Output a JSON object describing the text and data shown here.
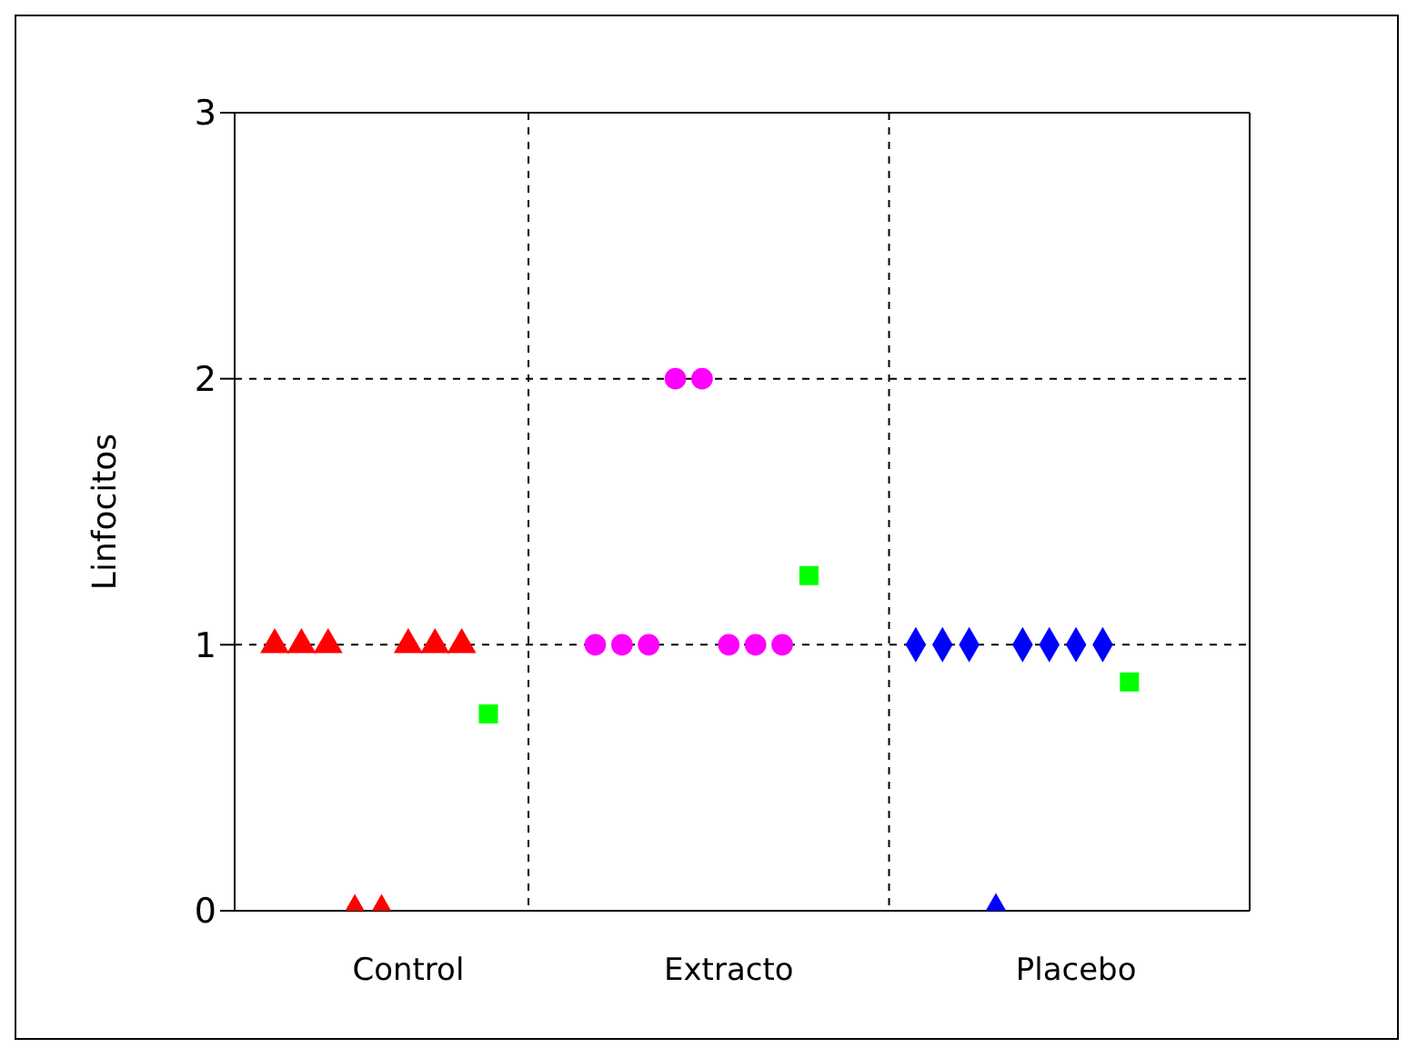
{
  "chart_data": {
    "type": "scatter",
    "ylabel": "Linfocitos",
    "categories": [
      null,
      null,
      null,
      null,
      null,
      null,
      "Control",
      null,
      null,
      null,
      null,
      null,
      null,
      null,
      null,
      null,
      null,
      null,
      "Extracto",
      null,
      null,
      null,
      null,
      null,
      null,
      null,
      null,
      null,
      null,
      null,
      null,
      "Placebo",
      null,
      null,
      null,
      null,
      null,
      null
    ],
    "ylim": [
      0,
      3
    ],
    "yticks": [
      0,
      1,
      2,
      3
    ],
    "grid": true,
    "series": [
      {
        "color": "#ff0000",
        "marker": "triangle",
        "values": [
          null,
          1,
          1,
          1,
          0,
          0,
          1,
          1,
          1,
          null,
          null,
          null,
          null,
          null,
          null,
          null,
          null,
          null,
          null,
          null,
          null,
          null,
          null,
          null,
          null,
          null,
          null,
          null,
          null,
          null,
          null,
          null,
          null,
          null,
          null,
          null,
          null,
          null
        ]
      },
      {
        "color": "#ff00ff",
        "marker": "circle",
        "values": [
          null,
          null,
          null,
          null,
          null,
          null,
          null,
          null,
          null,
          null,
          null,
          null,
          null,
          1,
          1,
          1,
          2,
          2,
          1,
          1,
          1,
          null,
          null,
          null,
          null,
          null,
          null,
          null,
          null,
          null,
          null,
          null,
          null,
          null,
          null,
          null,
          null,
          null
        ]
      },
      {
        "color": "#0000ff",
        "marker": "diamond",
        "values": [
          null,
          null,
          null,
          null,
          null,
          null,
          null,
          null,
          null,
          null,
          null,
          null,
          null,
          null,
          null,
          null,
          null,
          null,
          null,
          null,
          null,
          null,
          null,
          null,
          null,
          1,
          1,
          1,
          0,
          1,
          1,
          1,
          1,
          null,
          null,
          null,
          null,
          null
        ]
      },
      {
        "color": "#00ff00",
        "marker": "square",
        "values": [
          null,
          null,
          null,
          null,
          null,
          null,
          null,
          null,
          null,
          0.74,
          null,
          null,
          null,
          null,
          null,
          null,
          null,
          null,
          null,
          null,
          null,
          1.26,
          null,
          null,
          null,
          null,
          null,
          null,
          null,
          null,
          null,
          null,
          null,
          0.86,
          null,
          null,
          null,
          null
        ]
      }
    ]
  }
}
